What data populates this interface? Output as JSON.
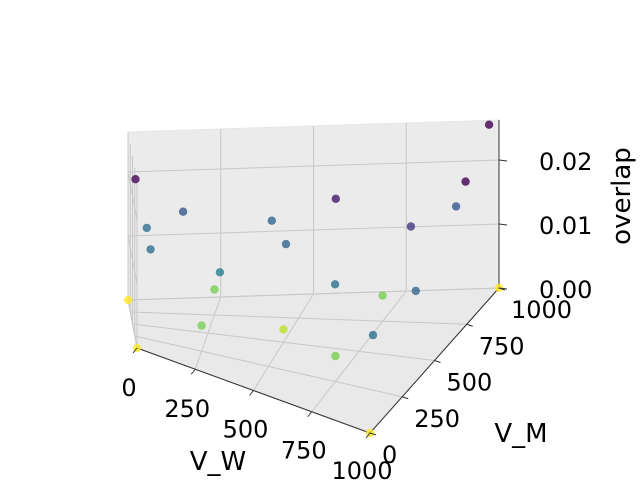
{
  "chart_data": {
    "type": "scatter",
    "projection": "3d",
    "title": "",
    "xlabel": "V_W",
    "ylabel": "V_M",
    "zlabel": "overlap",
    "xlim": [
      0,
      1000
    ],
    "ylim": [
      0,
      1000
    ],
    "zlim": [
      0.0,
      0.025
    ],
    "x_ticks": [
      "0",
      "250",
      "500",
      "750",
      "1000"
    ],
    "y_ticks": [
      "0",
      "250",
      "500",
      "750",
      "1000"
    ],
    "z_ticks": [
      "0.00",
      "0.01",
      "0.02"
    ],
    "grid": true,
    "colormap": "viridis",
    "color_meaning": "point color follows overlap value: low overlap = yellow, high overlap = purple",
    "points": [
      {
        "x": 0,
        "y": 0,
        "z": 0.0
      },
      {
        "x": 1000,
        "y": 0,
        "z": 0.0
      },
      {
        "x": 1000,
        "y": 1000,
        "z": 0.0
      },
      {
        "x": 0,
        "y": 1000,
        "z": 0.0
      },
      {
        "x": 500,
        "y": 500,
        "z": 0.002
      },
      {
        "x": 250,
        "y": 250,
        "z": 0.004
      },
      {
        "x": 750,
        "y": 250,
        "z": 0.004
      },
      {
        "x": 750,
        "y": 750,
        "z": 0.004
      },
      {
        "x": 250,
        "y": 750,
        "z": 0.004
      },
      {
        "x": 50,
        "y": 900,
        "z": 0.012
      },
      {
        "x": 20,
        "y": 980,
        "z": 0.019
      },
      {
        "x": 150,
        "y": 950,
        "z": 0.014
      },
      {
        "x": 60,
        "y": 500,
        "z": 0.012
      },
      {
        "x": 400,
        "y": 900,
        "z": 0.013
      },
      {
        "x": 900,
        "y": 950,
        "z": 0.014
      },
      {
        "x": 980,
        "y": 980,
        "z": 0.026
      },
      {
        "x": 960,
        "y": 850,
        "z": 0.02
      },
      {
        "x": 850,
        "y": 700,
        "z": 0.016
      },
      {
        "x": 600,
        "y": 800,
        "z": 0.018
      },
      {
        "x": 300,
        "y": 400,
        "z": 0.011
      },
      {
        "x": 980,
        "y": 400,
        "z": 0.013
      },
      {
        "x": 950,
        "y": 120,
        "z": 0.012
      },
      {
        "x": 700,
        "y": 400,
        "z": 0.012
      },
      {
        "x": 480,
        "y": 650,
        "z": 0.013
      }
    ]
  }
}
